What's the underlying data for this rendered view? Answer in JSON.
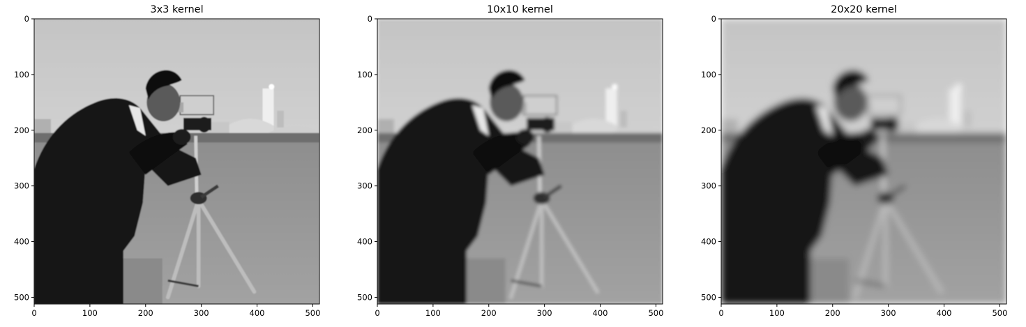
{
  "chart_data": [
    {
      "type": "image",
      "title": "3x3 kernel",
      "image_content": "grayscale photo: cameraman with tripod camera on a grass field, slight blur",
      "blur_std": 1.0,
      "x_ticks": [
        0,
        100,
        200,
        300,
        400,
        500
      ],
      "y_ticks": [
        0,
        100,
        200,
        300,
        400,
        500
      ],
      "xlim": [
        0,
        512
      ],
      "ylim": [
        512,
        0
      ],
      "colormap": "gray"
    },
    {
      "type": "image",
      "title": "10x10 kernel",
      "image_content": "grayscale photo: cameraman with tripod camera on a grass field, moderate blur",
      "blur_std": 3.0,
      "x_ticks": [
        0,
        100,
        200,
        300,
        400,
        500
      ],
      "y_ticks": [
        0,
        100,
        200,
        300,
        400,
        500
      ],
      "xlim": [
        0,
        512
      ],
      "ylim": [
        512,
        0
      ],
      "colormap": "gray"
    },
    {
      "type": "image",
      "title": "20x20 kernel",
      "image_content": "grayscale photo: cameraman with tripod camera on a grass field, heavy blur",
      "blur_std": 6.0,
      "x_ticks": [
        0,
        100,
        200,
        300,
        400,
        500
      ],
      "y_ticks": [
        0,
        100,
        200,
        300,
        400,
        500
      ],
      "xlim": [
        0,
        512
      ],
      "ylim": [
        512,
        0
      ],
      "colormap": "gray"
    }
  ]
}
